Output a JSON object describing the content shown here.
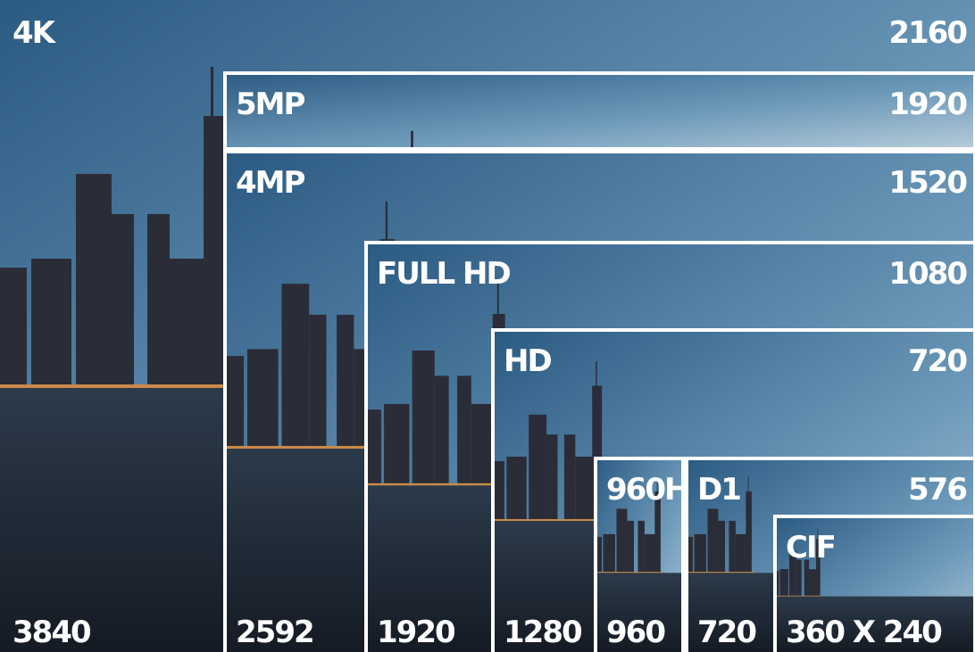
{
  "frames": [
    {
      "name": "4K",
      "height": "2160",
      "width": "3840"
    },
    {
      "name": "5MP",
      "height": "1920"
    },
    {
      "name": "4MP",
      "height": "1520",
      "width": "2592"
    },
    {
      "name": "FULL HD",
      "height": "1080",
      "width": "1920"
    },
    {
      "name": "HD",
      "height": "720",
      "width": "1280"
    },
    {
      "name": "960H",
      "width": "960"
    },
    {
      "name": "D1",
      "height": "576",
      "width": "720"
    },
    {
      "name": "CIF",
      "width": "360 X 240"
    }
  ]
}
